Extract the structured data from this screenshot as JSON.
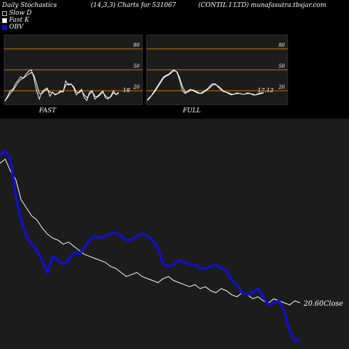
{
  "header": {
    "title": "Daily Stochastics",
    "params": "(14,3,3) Charts for 531067",
    "company": "(CONTIL I LTD) munafasutra.tbsjar.com"
  },
  "legend": [
    {
      "label": "Slow  D",
      "color": "#000000"
    },
    {
      "label": "Fast K",
      "color": "#ffffff"
    },
    {
      "label": "OBV",
      "color": "#1010cc"
    }
  ],
  "colors": {
    "background": "#000000",
    "panel_bg": "#1c1c1c",
    "level_line": "#d47a00",
    "stoch_line": "#ffffff",
    "obv_line": "#1010cc",
    "price_line": "#ffffff"
  },
  "chart_data": [
    {
      "type": "line",
      "panel": "FAST",
      "title": "FAST",
      "ylim": [
        0,
        100
      ],
      "levels": [
        80,
        50,
        20
      ],
      "tick_labels": [
        "80",
        "50",
        "20"
      ],
      "last_value_label": "18",
      "series": [
        {
          "name": "Fast K",
          "values": [
            5,
            12,
            20,
            22,
            30,
            35,
            40,
            38,
            44,
            48,
            50,
            38,
            20,
            8,
            18,
            22,
            24,
            12,
            18,
            14,
            16,
            20,
            18,
            34,
            28,
            30,
            24,
            14,
            18,
            22,
            10,
            6,
            18,
            20,
            8,
            12,
            16,
            20,
            10,
            8,
            12,
            20,
            14,
            18
          ]
        },
        {
          "values": [
            6,
            10,
            16,
            20,
            26,
            32,
            36,
            38,
            41,
            44,
            46,
            42,
            30,
            16,
            16,
            20,
            22,
            18,
            17,
            15,
            16,
            18,
            19,
            28,
            30,
            29,
            26,
            18,
            17,
            20,
            14,
            10,
            15,
            19,
            12,
            11,
            14,
            18,
            13,
            10,
            11,
            17,
            15,
            16
          ]
        }
      ]
    },
    {
      "type": "line",
      "panel": "FULL",
      "title": "FULL",
      "ylim": [
        0,
        100
      ],
      "levels": [
        80,
        50,
        20
      ],
      "tick_labels": [
        "80",
        "50",
        "20"
      ],
      "last_value_label": "17.12",
      "series": [
        {
          "values": [
            6,
            10,
            16,
            22,
            28,
            34,
            40,
            42,
            44,
            48,
            50,
            46,
            34,
            20,
            16,
            20,
            22,
            20,
            18,
            16,
            17,
            20,
            22,
            26,
            30,
            30,
            26,
            22,
            19,
            18,
            16,
            14,
            15,
            17,
            16,
            15,
            15,
            17,
            16,
            14,
            14,
            16,
            17,
            17
          ]
        },
        {
          "values": [
            7,
            11,
            15,
            20,
            26,
            32,
            38,
            41,
            43,
            46,
            49,
            47,
            38,
            26,
            18,
            18,
            21,
            21,
            19,
            17,
            16,
            18,
            21,
            24,
            28,
            29,
            27,
            24,
            20,
            18,
            17,
            15,
            15,
            16,
            16,
            15,
            15,
            16,
            16,
            15,
            14,
            15,
            16,
            17
          ]
        }
      ]
    },
    {
      "type": "line",
      "panel": "PRICE_OBV",
      "close_label": "20.60Close",
      "series": [
        {
          "values": [
            0.78,
            0.8,
            0.74,
            0.7,
            0.6,
            0.56,
            0.52,
            0.5,
            0.46,
            0.43,
            0.41,
            0.4,
            0.38,
            0.39,
            0.37,
            0.35,
            0.33,
            0.32,
            0.31,
            0.3,
            0.29,
            0.27,
            0.26,
            0.24,
            0.22,
            0.23,
            0.24,
            0.22,
            0.21,
            0.2,
            0.19,
            0.21,
            0.22,
            0.2,
            0.19,
            0.18,
            0.17,
            0.18,
            0.16,
            0.17,
            0.15,
            0.14,
            0.16,
            0.15,
            0.13,
            0.12,
            0.14,
            0.13,
            0.11,
            0.12,
            0.1,
            0.09,
            0.11,
            0.1,
            0.09,
            0.08,
            0.1,
            0.09
          ]
        },
        {
          "name": "OBV",
          "values": [
            0.82,
            0.84,
            0.8,
            0.62,
            0.5,
            0.42,
            0.38,
            0.35,
            0.3,
            0.24,
            0.32,
            0.3,
            0.28,
            0.3,
            0.34,
            0.33,
            0.36,
            0.4,
            0.42,
            0.41,
            0.42,
            0.43,
            0.44,
            0.42,
            0.4,
            0.4,
            0.42,
            0.43,
            0.42,
            0.4,
            0.36,
            0.28,
            0.27,
            0.28,
            0.3,
            0.29,
            0.28,
            0.28,
            0.26,
            0.26,
            0.27,
            0.28,
            0.26,
            0.25,
            0.2,
            0.18,
            0.14,
            0.13,
            0.14,
            0.16,
            0.12,
            0.08,
            0.09,
            0.1,
            0.05,
            -0.05,
            -0.1,
            -0.09
          ]
        }
      ]
    }
  ]
}
